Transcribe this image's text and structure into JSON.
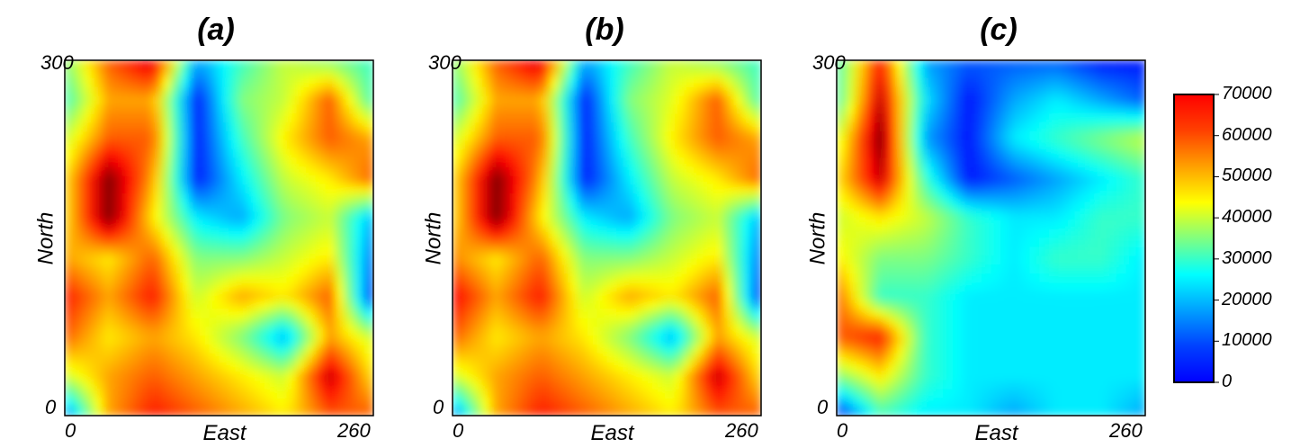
{
  "chart_data": {
    "type": "heatmap",
    "colormap": "jet",
    "colorbar": {
      "min": 0,
      "max": 70000,
      "ticks": [
        "0",
        "10000",
        "20000",
        "30000",
        "40000",
        "50000",
        "60000",
        "70000"
      ]
    },
    "xlabel": "East",
    "ylabel": "North",
    "xlim": [
      0,
      260
    ],
    "ylim": [
      0,
      300
    ],
    "xticks": [
      "0",
      "260"
    ],
    "yticks": [
      "0",
      "300"
    ],
    "grid_note": "approximate values in thousands, rows from North=300 (top) to 0, columns East 0 to 260",
    "panels": [
      {
        "title": "(a)",
        "values": [
          [
            35,
            55,
            65,
            20,
            30,
            40,
            35,
            30
          ],
          [
            30,
            50,
            50,
            10,
            35,
            40,
            55,
            30
          ],
          [
            40,
            55,
            55,
            10,
            30,
            45,
            55,
            50
          ],
          [
            45,
            70,
            50,
            10,
            25,
            40,
            45,
            55
          ],
          [
            45,
            70,
            45,
            25,
            20,
            35,
            40,
            20
          ],
          [
            50,
            45,
            55,
            35,
            35,
            40,
            45,
            15
          ],
          [
            60,
            50,
            60,
            40,
            50,
            45,
            55,
            10
          ],
          [
            55,
            45,
            50,
            45,
            35,
            20,
            50,
            40
          ],
          [
            40,
            50,
            55,
            50,
            45,
            40,
            65,
            45
          ],
          [
            15,
            50,
            60,
            55,
            50,
            45,
            55,
            55
          ]
        ]
      },
      {
        "title": "(b)",
        "values": [
          [
            35,
            55,
            65,
            20,
            30,
            40,
            35,
            30
          ],
          [
            30,
            50,
            50,
            10,
            35,
            42,
            55,
            30
          ],
          [
            40,
            55,
            55,
            10,
            30,
            45,
            55,
            50
          ],
          [
            45,
            70,
            50,
            10,
            25,
            40,
            45,
            55
          ],
          [
            45,
            70,
            45,
            25,
            20,
            35,
            40,
            20
          ],
          [
            52,
            45,
            55,
            35,
            35,
            40,
            45,
            15
          ],
          [
            62,
            50,
            60,
            40,
            50,
            45,
            55,
            10
          ],
          [
            55,
            45,
            50,
            45,
            35,
            20,
            50,
            40
          ],
          [
            40,
            50,
            55,
            50,
            45,
            40,
            65,
            45
          ],
          [
            15,
            50,
            60,
            55,
            50,
            45,
            55,
            55
          ]
        ]
      },
      {
        "title": "(c)",
        "values": [
          [
            30,
            60,
            20,
            15,
            15,
            15,
            10,
            10
          ],
          [
            30,
            65,
            25,
            10,
            20,
            25,
            20,
            15
          ],
          [
            40,
            70,
            20,
            10,
            25,
            30,
            35,
            40
          ],
          [
            45,
            65,
            30,
            10,
            15,
            20,
            25,
            30
          ],
          [
            40,
            45,
            40,
            30,
            25,
            25,
            30,
            30
          ],
          [
            45,
            35,
            35,
            30,
            25,
            30,
            30,
            25
          ],
          [
            55,
            30,
            30,
            25,
            25,
            25,
            25,
            25
          ],
          [
            55,
            60,
            30,
            25,
            25,
            25,
            25,
            25
          ],
          [
            35,
            45,
            30,
            25,
            25,
            25,
            25,
            25
          ],
          [
            10,
            30,
            25,
            25,
            20,
            25,
            25,
            20
          ]
        ]
      }
    ]
  }
}
